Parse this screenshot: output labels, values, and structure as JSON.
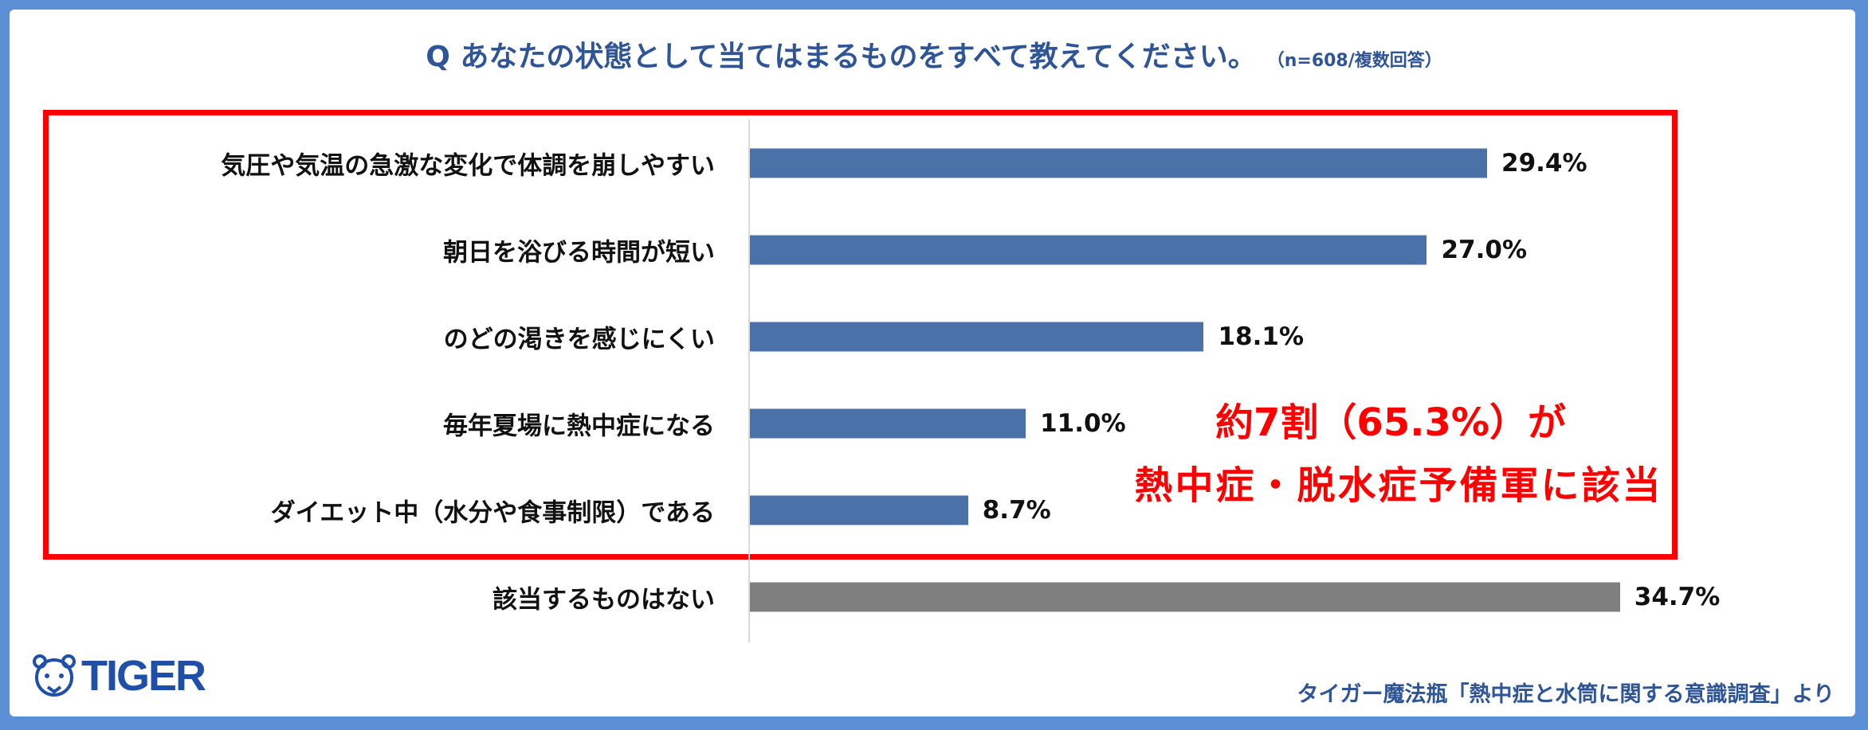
{
  "title": {
    "question": "Q あなたの状態として当てはまるものをすべて教えてください。",
    "note": "（n=608/複数回答）"
  },
  "chart_data": {
    "type": "bar",
    "orientation": "horizontal",
    "categories": [
      "気圧や気温の急激な変化で体調を崩しやすい",
      "朝日を浴びる時間が短い",
      "のどの渇きを感じにくい",
      "毎年夏場に熱中症になる",
      "ダイエット中（水分や食事制限）である",
      "該当するものはない"
    ],
    "values": [
      29.4,
      27.0,
      18.1,
      11.0,
      8.7,
      34.7
    ],
    "labels": [
      "29.4%",
      "27.0%",
      "18.1%",
      "11.0%",
      "8.7%",
      "34.7%"
    ],
    "colors": [
      "#4a72a8",
      "#4a72a8",
      "#4a72a8",
      "#4a72a8",
      "#4a72a8",
      "#7f7f7f"
    ],
    "xlim": [
      0,
      40
    ],
    "grid": false
  },
  "annotation": {
    "line1": "約7割（65.3%）が",
    "line2": "熱中症・脱水症予備軍に該当",
    "color": "#ff0000"
  },
  "logo": {
    "text": "TIGER"
  },
  "source": "タイガー魔法瓶「熱中症と水筒に関する意識調査」より"
}
